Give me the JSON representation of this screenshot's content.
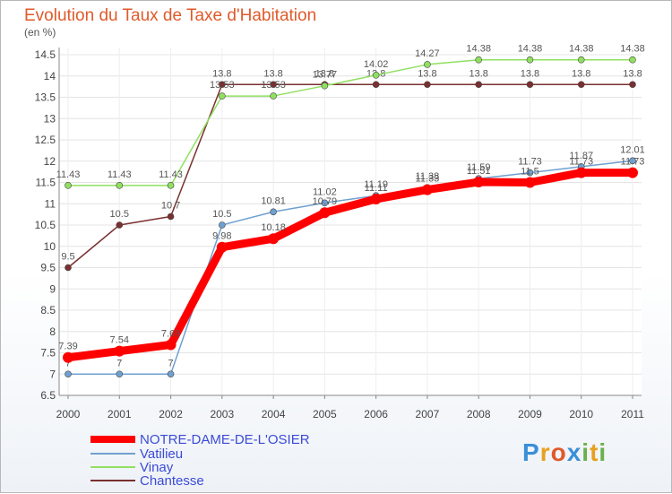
{
  "chart_data": {
    "type": "line",
    "title": "Evolution du Taux de Taxe d'Habitation",
    "subtitle": "(en %)",
    "xlabel": "",
    "ylabel": "(en %)",
    "x": [
      "2000",
      "2001",
      "2002",
      "2003",
      "2004",
      "2005",
      "2006",
      "2007",
      "2008",
      "2009",
      "2010",
      "2011"
    ],
    "ylim": [
      6.5,
      14.5
    ],
    "yticks": [
      "6.5",
      "7",
      "7.5",
      "8",
      "8.5",
      "9",
      "9.5",
      "10",
      "10.5",
      "11",
      "11.5",
      "12",
      "12.5",
      "13",
      "13.5",
      "14",
      "14.5"
    ],
    "grid": true,
    "series": [
      {
        "name": "NOTRE-DAME-DE-L'OSIER",
        "color": "#ff0000",
        "values": [
          7.39,
          7.54,
          7.69,
          9.98,
          10.18,
          10.79,
          11.11,
          11.33,
          11.51,
          11.5,
          11.73,
          11.73
        ],
        "labels": [
          "7.39",
          "7.54",
          "7.69",
          "9.98",
          "10.18",
          "10.79",
          "11.11",
          "11.33",
          "11.51",
          "11.5",
          "11.73",
          "11.73"
        ]
      },
      {
        "name": "Vatilieu",
        "color": "#6fa0d0",
        "values": [
          7,
          7,
          7,
          10.5,
          10.81,
          11.02,
          11.19,
          11.38,
          11.59,
          11.73,
          11.87,
          12.01
        ],
        "labels": [
          "7",
          "7",
          "7",
          "10.5",
          "10.81",
          "11.02",
          "11.19",
          "11.38",
          "11.59",
          "11.73",
          "11.87",
          "12.01"
        ]
      },
      {
        "name": "Vinay",
        "color": "#90e060",
        "values": [
          11.43,
          11.43,
          11.43,
          13.53,
          13.53,
          13.77,
          14.02,
          14.27,
          14.38,
          14.38,
          14.38,
          14.38
        ],
        "labels": [
          "11.43",
          "11.43",
          "11.43",
          "13.53",
          "13.53",
          "13.77",
          "14.02",
          "14.27",
          "14.38",
          "14.38",
          "14.38",
          "14.38"
        ]
      },
      {
        "name": "Chantesse",
        "color": "#7a3030",
        "values": [
          9.5,
          10.5,
          10.7,
          13.8,
          13.8,
          13.8,
          13.8,
          13.8,
          13.8,
          13.8,
          13.8,
          13.8
        ],
        "labels": [
          "9.5",
          "10.5",
          "10.7",
          "13.8",
          "13.8",
          "13.8",
          "13.8",
          "13.8",
          "13.8",
          "13.8",
          "13.8",
          "13.8"
        ]
      }
    ],
    "legend_position": "bottom-left"
  },
  "logo": {
    "text": "Proxiti",
    "letters": [
      "P",
      "r",
      "o",
      "x",
      "i",
      "t",
      "i"
    ],
    "colors": [
      "#3a8fd9",
      "#e8a020",
      "#e05a2b",
      "#3a8fd9",
      "#6ab04c",
      "#e8a020",
      "#6ab04c"
    ]
  }
}
